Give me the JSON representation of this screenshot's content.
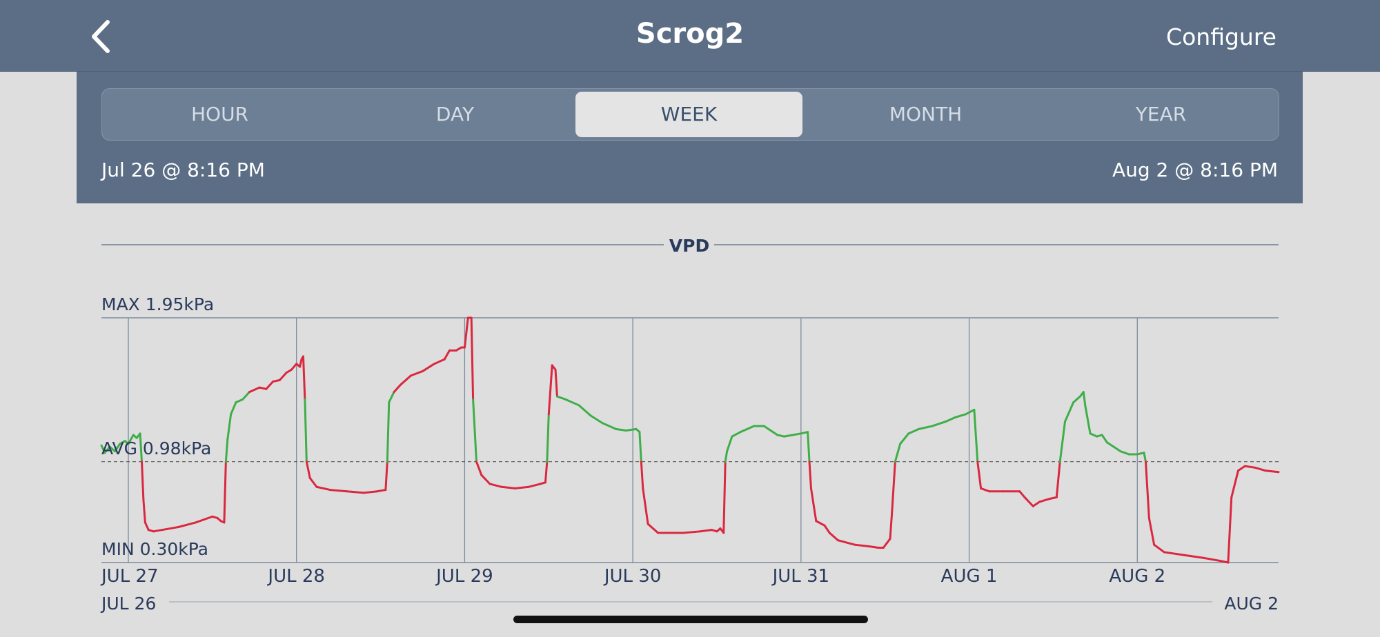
{
  "header": {
    "title": "Scrog2",
    "configure_label": "Configure",
    "back_icon": "chevron-left-icon"
  },
  "tabs": [
    "HOUR",
    "DAY",
    "WEEK",
    "MONTH",
    "YEAR"
  ],
  "active_tab": "WEEK",
  "range": {
    "start": "Jul 26 @ 8:16 PM",
    "end": "Aug 2 @ 8:16 PM"
  },
  "colors": {
    "header": "#5b6e85",
    "in_range": "#3fae49",
    "out_of_range": "#d9283f"
  },
  "chart_data": {
    "type": "line",
    "title": "VPD",
    "unit": "kPa",
    "max_label": "MAX 1.95kPa",
    "avg_label": "AVG 0.98kPa",
    "min_label": "MIN 0.30kPa",
    "ylim": [
      0.3,
      1.95
    ],
    "avg": 0.98,
    "day_labels": [
      "JUL 27",
      "JUL 28",
      "JUL 29",
      "JUL 30",
      "JUL 31",
      "AUG 1",
      "AUG 2"
    ],
    "day_positions": [
      1,
      2,
      3,
      4,
      5,
      6,
      7
    ],
    "overview_labels": [
      "JUL 26",
      "AUG 2"
    ],
    "xlim": [
      0.84,
      7.84
    ],
    "series": [
      {
        "points": [
          [
            0.84,
            1.09
          ],
          [
            0.86,
            1.04
          ],
          [
            0.89,
            1.08
          ],
          [
            0.92,
            1.05
          ],
          [
            0.95,
            1.1
          ],
          [
            0.98,
            1.12
          ],
          [
            1.0,
            1.1
          ],
          [
            1.03,
            1.16
          ],
          [
            1.05,
            1.14
          ],
          [
            1.07,
            1.17
          ],
          [
            1.08,
            0.98
          ],
          [
            1.09,
            0.72
          ],
          [
            1.1,
            0.57
          ],
          [
            1.12,
            0.52
          ],
          [
            1.15,
            0.51
          ],
          [
            1.2,
            0.52
          ],
          [
            1.3,
            0.54
          ],
          [
            1.4,
            0.57
          ],
          [
            1.45,
            0.59
          ],
          [
            1.5,
            0.61
          ],
          [
            1.53,
            0.6
          ],
          [
            1.55,
            0.58
          ],
          [
            1.57,
            0.57
          ],
          [
            1.58,
            0.98
          ],
          [
            1.59,
            1.13
          ],
          [
            1.61,
            1.3
          ],
          [
            1.64,
            1.38
          ],
          [
            1.68,
            1.4
          ],
          [
            1.72,
            1.45
          ],
          [
            1.78,
            1.48
          ],
          [
            1.82,
            1.47
          ],
          [
            1.86,
            1.52
          ],
          [
            1.9,
            1.53
          ],
          [
            1.94,
            1.58
          ],
          [
            1.97,
            1.6
          ],
          [
            2.0,
            1.64
          ],
          [
            2.02,
            1.62
          ],
          [
            2.03,
            1.67
          ],
          [
            2.04,
            1.69
          ],
          [
            2.05,
            1.4
          ],
          [
            2.06,
            0.98
          ],
          [
            2.08,
            0.87
          ],
          [
            2.12,
            0.81
          ],
          [
            2.2,
            0.79
          ],
          [
            2.3,
            0.78
          ],
          [
            2.4,
            0.77
          ],
          [
            2.48,
            0.78
          ],
          [
            2.53,
            0.79
          ],
          [
            2.54,
            0.98
          ],
          [
            2.55,
            1.38
          ],
          [
            2.58,
            1.45
          ],
          [
            2.62,
            1.5
          ],
          [
            2.68,
            1.56
          ],
          [
            2.75,
            1.59
          ],
          [
            2.82,
            1.64
          ],
          [
            2.88,
            1.67
          ],
          [
            2.91,
            1.73
          ],
          [
            2.95,
            1.73
          ],
          [
            2.98,
            1.75
          ],
          [
            3.0,
            1.75
          ],
          [
            3.02,
            1.95
          ],
          [
            3.04,
            1.95
          ],
          [
            3.05,
            1.4
          ],
          [
            3.07,
            0.98
          ],
          [
            3.1,
            0.89
          ],
          [
            3.15,
            0.83
          ],
          [
            3.22,
            0.81
          ],
          [
            3.3,
            0.8
          ],
          [
            3.38,
            0.81
          ],
          [
            3.45,
            0.83
          ],
          [
            3.48,
            0.84
          ],
          [
            3.49,
            0.98
          ],
          [
            3.5,
            1.3
          ],
          [
            3.52,
            1.63
          ],
          [
            3.54,
            1.6
          ],
          [
            3.55,
            1.42
          ],
          [
            3.6,
            1.4
          ],
          [
            3.68,
            1.36
          ],
          [
            3.75,
            1.29
          ],
          [
            3.82,
            1.24
          ],
          [
            3.9,
            1.2
          ],
          [
            3.96,
            1.19
          ],
          [
            4.02,
            1.2
          ],
          [
            4.04,
            1.18
          ],
          [
            4.05,
            0.98
          ],
          [
            4.06,
            0.8
          ],
          [
            4.09,
            0.56
          ],
          [
            4.15,
            0.5
          ],
          [
            4.3,
            0.5
          ],
          [
            4.4,
            0.51
          ],
          [
            4.47,
            0.52
          ],
          [
            4.5,
            0.51
          ],
          [
            4.52,
            0.53
          ],
          [
            4.54,
            0.5
          ],
          [
            4.55,
            0.98
          ],
          [
            4.56,
            1.05
          ],
          [
            4.59,
            1.15
          ],
          [
            4.64,
            1.18
          ],
          [
            4.68,
            1.2
          ],
          [
            4.72,
            1.22
          ],
          [
            4.78,
            1.22
          ],
          [
            4.82,
            1.19
          ],
          [
            4.86,
            1.16
          ],
          [
            4.9,
            1.15
          ],
          [
            4.95,
            1.16
          ],
          [
            5.0,
            1.17
          ],
          [
            5.04,
            1.18
          ],
          [
            5.05,
            0.98
          ],
          [
            5.06,
            0.8
          ],
          [
            5.09,
            0.58
          ],
          [
            5.14,
            0.55
          ],
          [
            5.17,
            0.5
          ],
          [
            5.22,
            0.45
          ],
          [
            5.32,
            0.42
          ],
          [
            5.4,
            0.41
          ],
          [
            5.46,
            0.4
          ],
          [
            5.49,
            0.4
          ],
          [
            5.51,
            0.43
          ],
          [
            5.53,
            0.46
          ],
          [
            5.54,
            0.62
          ],
          [
            5.56,
            0.98
          ],
          [
            5.59,
            1.1
          ],
          [
            5.64,
            1.17
          ],
          [
            5.7,
            1.2
          ],
          [
            5.78,
            1.22
          ],
          [
            5.86,
            1.25
          ],
          [
            5.92,
            1.28
          ],
          [
            5.98,
            1.3
          ],
          [
            6.03,
            1.33
          ],
          [
            6.05,
            0.98
          ],
          [
            6.07,
            0.8
          ],
          [
            6.12,
            0.78
          ],
          [
            6.2,
            0.78
          ],
          [
            6.3,
            0.78
          ],
          [
            6.33,
            0.74
          ],
          [
            6.38,
            0.68
          ],
          [
            6.42,
            0.71
          ],
          [
            6.48,
            0.73
          ],
          [
            6.52,
            0.74
          ],
          [
            6.54,
            0.98
          ],
          [
            6.57,
            1.25
          ],
          [
            6.62,
            1.38
          ],
          [
            6.66,
            1.42
          ],
          [
            6.68,
            1.45
          ],
          [
            6.69,
            1.36
          ],
          [
            6.72,
            1.17
          ],
          [
            6.76,
            1.15
          ],
          [
            6.79,
            1.16
          ],
          [
            6.82,
            1.11
          ],
          [
            6.86,
            1.08
          ],
          [
            6.9,
            1.05
          ],
          [
            6.95,
            1.03
          ],
          [
            7.0,
            1.03
          ],
          [
            7.04,
            1.04
          ],
          [
            7.05,
            0.98
          ],
          [
            7.07,
            0.6
          ],
          [
            7.1,
            0.42
          ],
          [
            7.16,
            0.37
          ],
          [
            7.28,
            0.35
          ],
          [
            7.4,
            0.33
          ],
          [
            7.5,
            0.31
          ],
          [
            7.54,
            0.3
          ],
          [
            7.56,
            0.74
          ],
          [
            7.6,
            0.92
          ],
          [
            7.64,
            0.95
          ],
          [
            7.7,
            0.94
          ],
          [
            7.76,
            0.92
          ],
          [
            7.84,
            0.91
          ]
        ]
      }
    ]
  }
}
